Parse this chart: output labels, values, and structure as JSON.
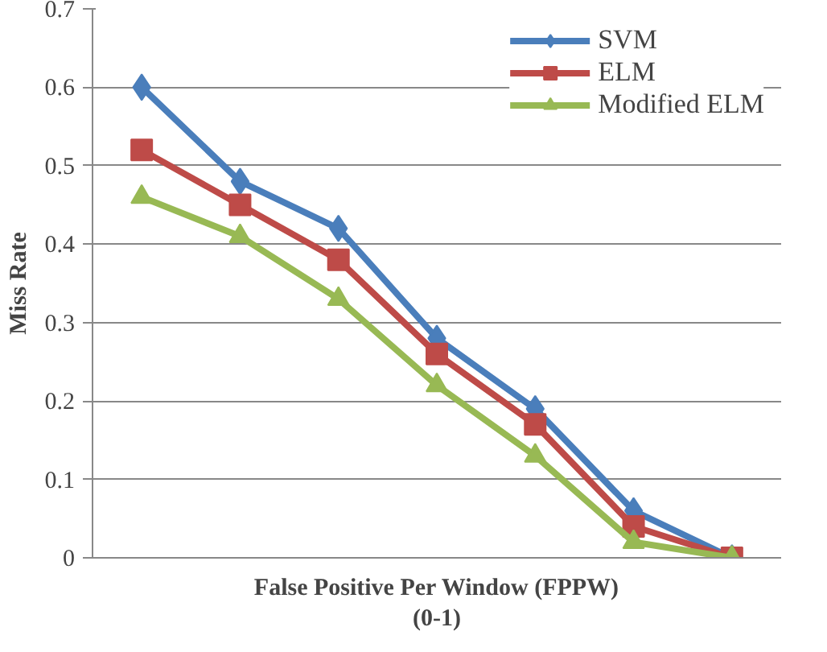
{
  "chart_data": {
    "type": "line",
    "xlabel": "False Positive Per Window (FPPW)\n(0-1)",
    "ylabel": "Miss Rate",
    "categories": [
      null,
      null,
      null,
      null,
      null,
      null,
      null
    ],
    "ylim": [
      0,
      0.7
    ],
    "yticks": [
      {
        "value": 0,
        "label": "0"
      },
      0.1,
      0.2,
      0.3,
      0.4,
      0.5,
      0.6,
      0.7
    ],
    "grid": "y",
    "legend": "top right",
    "tick_labels": "y",
    "line_style": "solid",
    "series": [
      {
        "name": "SVM",
        "color": "#4a7ebb",
        "marker": "diamond",
        "values": [
          0.6,
          0.48,
          0.42,
          0.28,
          0.19,
          0.06,
          0
        ]
      },
      {
        "name": "ELM",
        "color": "#be4b48",
        "marker": "square",
        "values": [
          0.52,
          0.45,
          0.38,
          0.26,
          0.17,
          0.04,
          0
        ]
      },
      {
        "name": "Modified ELM",
        "color": "#98b954",
        "marker": "triangle",
        "values": [
          0.46,
          0.41,
          0.33,
          0.22,
          0.13,
          0.02,
          0
        ]
      }
    ]
  }
}
